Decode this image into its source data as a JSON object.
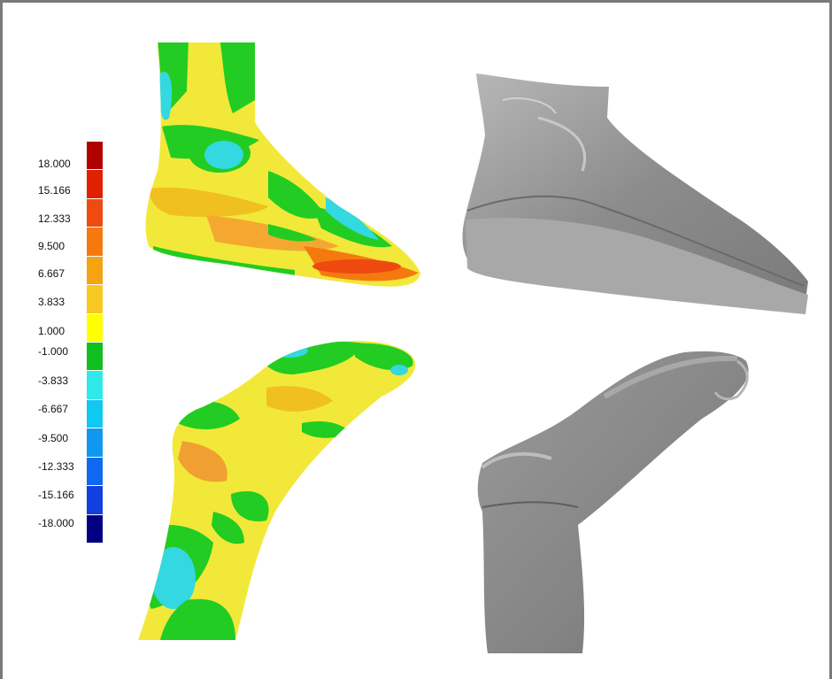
{
  "legend": {
    "labels": [
      "18.000",
      "15.166",
      "12.333",
      "9.500",
      "6.667",
      "3.833",
      "1.000",
      "-1.000",
      "-3.833",
      "-6.667",
      "-9.500",
      "-12.333",
      "-15.166",
      "-18.000"
    ],
    "colors": [
      "#b00000",
      "#e02000",
      "#f04a10",
      "#f47a10",
      "#f5a310",
      "#f7c820",
      "#ffff00",
      "#10c020",
      "#30e8e8",
      "#10c8f0",
      "#1098f0",
      "#1068f0",
      "#1040e0",
      "#000080"
    ]
  },
  "views": [
    {
      "name": "deviation-map-lateral"
    },
    {
      "name": "scan-lateral"
    },
    {
      "name": "deviation-map-top"
    },
    {
      "name": "scan-top"
    }
  ]
}
